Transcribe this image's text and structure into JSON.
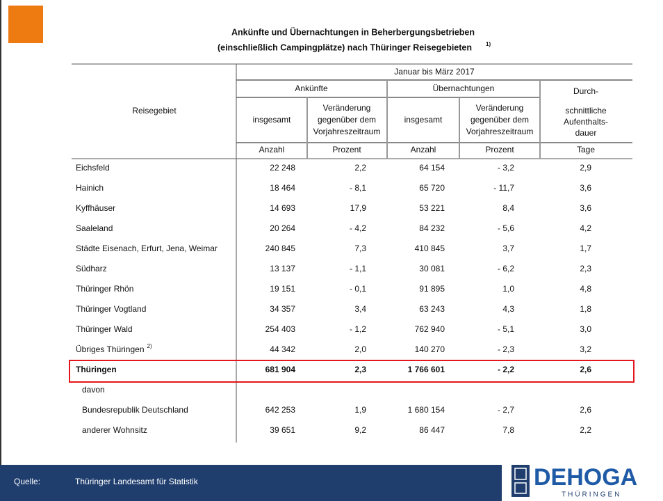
{
  "title": {
    "line1": "Ankünfte und Übernachtungen in Beherbergungsbetrieben",
    "line2": "(einschließlich Campingplätze) nach Thüringer Reisegebieten",
    "note": "1)"
  },
  "table": {
    "header": {
      "period": "Januar bis März 2017",
      "first": "Reisegebiet",
      "group1": "Ankünfte",
      "group2": "Übernachtungen",
      "total": "insgesamt",
      "change": [
        "Veränderung",
        "gegenüber dem",
        "Vorjahreszeitraum"
      ],
      "duration": [
        "Durch-",
        "schnittliche",
        "Aufenthalts-",
        "dauer"
      ]
    },
    "units": [
      "Anzahl",
      "Prozent",
      "Anzahl",
      "Prozent",
      "Tage"
    ],
    "rows": [
      {
        "label": "Eichsfeld",
        "cells": [
          "22 248",
          "2,2",
          "64 154",
          "- 3,2",
          "2,9"
        ]
      },
      {
        "label": "Hainich",
        "cells": [
          "18 464",
          "- 8,1",
          "65 720",
          "- 11,7",
          "3,6"
        ]
      },
      {
        "label": "Kyffhäuser",
        "cells": [
          "14 693",
          "17,9",
          "53 221",
          "8,4",
          "3,6"
        ]
      },
      {
        "label": "Saaleland",
        "cells": [
          "20 264",
          "- 4,2",
          "84 232",
          "- 5,6",
          "4,2"
        ]
      },
      {
        "label": "Städte Eisenach, Erfurt, Jena, Weimar",
        "cells": [
          "240 845",
          "7,3",
          "410 845",
          "3,7",
          "1,7"
        ]
      },
      {
        "label": "Südharz",
        "cells": [
          "13 137",
          "- 1,1",
          "30 081",
          "- 6,2",
          "2,3"
        ]
      },
      {
        "label": "Thüringer Rhön",
        "cells": [
          "19 151",
          "- 0,1",
          "91 895",
          "1,0",
          "4,8"
        ]
      },
      {
        "label": "Thüringer Vogtland",
        "cells": [
          "34 357",
          "3,4",
          "63 243",
          "4,3",
          "1,8"
        ]
      },
      {
        "label": "Thüringer Wald",
        "cells": [
          "254 403",
          "- 1,2",
          "762 940",
          "- 5,1",
          "3,0"
        ]
      },
      {
        "label": "Übriges Thüringen",
        "note": "2)",
        "cells": [
          "44 342",
          "2,0",
          "140 270",
          "- 2,3",
          "3,2"
        ]
      },
      {
        "label": "Thüringen",
        "bold": true,
        "highlight": true,
        "cells": [
          "681 904",
          "2,3",
          "1 766 601",
          "- 2,2",
          "2,6"
        ]
      },
      {
        "label": "davon",
        "indent": true,
        "cells": []
      },
      {
        "label": "Bundesrepublik Deutschland",
        "indent": true,
        "cells": [
          "642 253",
          "1,9",
          "1 680 154",
          "- 2,7",
          "2,6"
        ]
      },
      {
        "label": "anderer Wohnsitz",
        "indent": true,
        "cells": [
          "39 651",
          "9,2",
          "86 447",
          "7,8",
          "2,2"
        ]
      }
    ]
  },
  "footer": {
    "label": "Quelle:",
    "source": "Thüringer Landesamt für Statistik"
  },
  "logo": {
    "name": "DEHOGA",
    "region": "THÜRINGEN"
  }
}
